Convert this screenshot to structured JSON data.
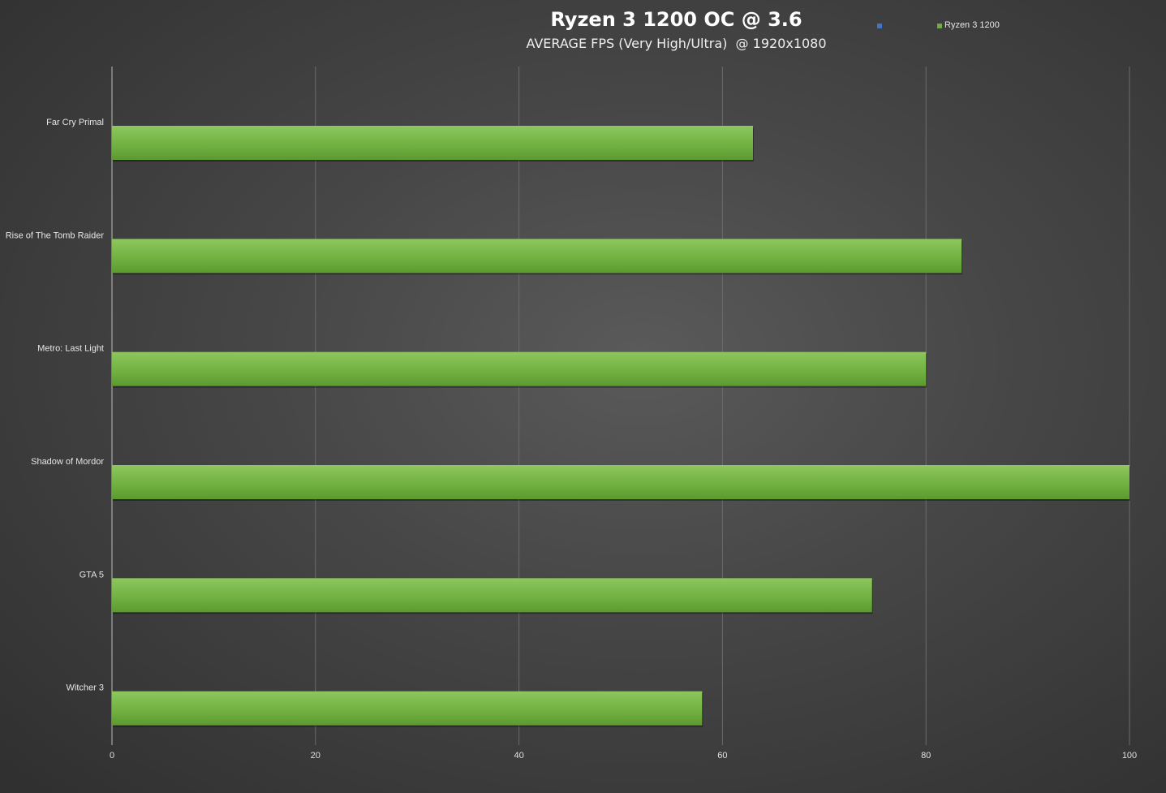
{
  "chart_data": {
    "type": "bar",
    "orientation": "horizontal",
    "title": "Ryzen 3 1200 OC @ 3.6",
    "subtitle": "AVERAGE FPS (Very High/Ultra)  @ 1920x1080",
    "categories": [
      "Far Cry Primal",
      "Rise of The Tomb Raider",
      "Metro: Last Light",
      "Shadow of Mordor",
      "GTA 5",
      "Witcher 3"
    ],
    "series": [
      {
        "name": "Ryzen 3 1200",
        "color": "#70ad47",
        "values": [
          63,
          83.5,
          80,
          100,
          74.7,
          58
        ]
      }
    ],
    "xlim": [
      0,
      100
    ],
    "xticks": [
      0,
      20,
      40,
      60,
      80,
      100
    ],
    "grid": true,
    "legend": {
      "placement": "top-right",
      "entries": [
        {
          "name": "",
          "color": "#4472c4"
        },
        {
          "name": "Ryzen 3 1200",
          "color": "#70ad47"
        }
      ]
    }
  }
}
